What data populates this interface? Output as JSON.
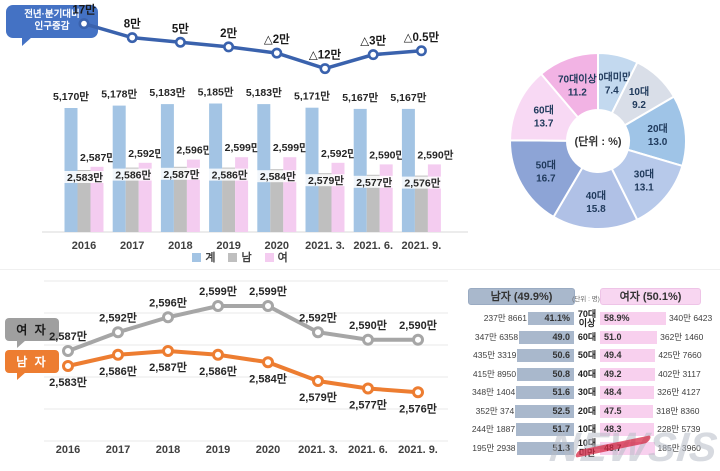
{
  "watermark": "NEWSIS",
  "callouts": {
    "top": [
      "전년·분기대비",
      "인구증감"
    ],
    "female": "여 자",
    "male": "남 자"
  },
  "legend": {
    "items": [
      {
        "label": "계",
        "color": "#a3c4e4"
      },
      {
        "label": "남",
        "color": "#bfbfbf"
      },
      {
        "label": "여",
        "color": "#f4ccf0"
      }
    ]
  },
  "chart_data": [
    {
      "id": "population-combo",
      "type": "bar",
      "title": "전년·분기대비 인구증감",
      "categories": [
        "2016",
        "2017",
        "2018",
        "2019",
        "2020",
        "2021. 3.",
        "2021. 6.",
        "2021. 9."
      ],
      "legend_position": "bottom",
      "series": [
        {
          "name": "계",
          "type": "bar",
          "color": "#a3c4e4",
          "values": [
            5170,
            5178,
            5183,
            5185,
            5183,
            5171,
            5167,
            5167
          ],
          "labels": [
            "5,170만",
            "5,178만",
            "5,183만",
            "5,185만",
            "5,183만",
            "5,171만",
            "5,167만",
            "5,167만"
          ]
        },
        {
          "name": "남",
          "type": "bar",
          "color": "#bfbfbf",
          "values": [
            2583,
            2586,
            2587,
            2586,
            2584,
            2579,
            2577,
            2576
          ],
          "labels": [
            "2,583만",
            "2,586만",
            "2,587만",
            "2,586만",
            "2,584만",
            "2,579만",
            "2,577만",
            "2,576만"
          ]
        },
        {
          "name": "여",
          "type": "bar",
          "color": "#f4ccf0",
          "values": [
            2587,
            2592,
            2596,
            2599,
            2599,
            2592,
            2590,
            2590
          ],
          "labels": [
            "2,587만",
            "2,592만",
            "2,596만",
            "2,599만",
            "2,599만",
            "2,592만",
            "2,590만",
            "2,590만"
          ]
        },
        {
          "name": "전년·분기대비 인구증감",
          "type": "line",
          "color": "#3a62ad",
          "values": [
            17,
            8,
            5,
            2,
            -2,
            -12,
            -3,
            -0.5
          ],
          "labels": [
            "17만",
            "8만",
            "5만",
            "2만",
            "△2만",
            "△12만",
            "△3만",
            "△0.5만"
          ]
        }
      ]
    },
    {
      "id": "age-distribution-donut",
      "type": "pie",
      "center_label": "(단위 : %)",
      "segments": [
        {
          "label": "10대미만",
          "value": 7.4,
          "value_label": "7.4",
          "color": "#c3d9ef"
        },
        {
          "label": "10대",
          "value": 9.2,
          "value_label": "9.2",
          "color": "#d9dee8"
        },
        {
          "label": "20대",
          "value": 13.0,
          "value_label": "13.0",
          "color": "#9fc4e7"
        },
        {
          "label": "30대",
          "value": 13.1,
          "value_label": "13.1",
          "color": "#b7c9ea"
        },
        {
          "label": "40대",
          "value": 15.8,
          "value_label": "15.8",
          "color": "#b0c1e6"
        },
        {
          "label": "50대",
          "value": 16.7,
          "value_label": "16.7",
          "color": "#8da4d6"
        },
        {
          "label": "60대",
          "value": 13.7,
          "value_label": "13.7",
          "color": "#f8d9f4"
        },
        {
          "label": "70대이상",
          "value": 11.2,
          "value_label": "11.2",
          "color": "#f2b3e4"
        }
      ]
    },
    {
      "id": "gender-trend-line",
      "type": "line",
      "categories": [
        "2016",
        "2017",
        "2018",
        "2019",
        "2020",
        "2021. 3.",
        "2021. 6.",
        "2021. 9."
      ],
      "grid": true,
      "series": [
        {
          "name": "여 자",
          "color": "#a6a6a6",
          "values": [
            2587,
            2592,
            2596,
            2599,
            2599,
            2592,
            2590,
            2590
          ],
          "labels": [
            "2,587만",
            "2,592만",
            "2,596만",
            "2,599만",
            "2,599만",
            "2,592만",
            "2,590만",
            "2,590만"
          ]
        },
        {
          "name": "남 자",
          "color": "#ed7d31",
          "values": [
            2583,
            2586,
            2587,
            2586,
            2584,
            2579,
            2577,
            2576
          ],
          "labels": [
            "2,583만",
            "2,586만",
            "2,587만",
            "2,586만",
            "2,584만",
            "2,579만",
            "2,577만",
            "2,576만"
          ]
        }
      ]
    },
    {
      "id": "gender-age-table",
      "type": "table",
      "male_header": "남자 (49.9%)",
      "female_header": "여자 (50.1%)",
      "unit": "(단위 : 명)",
      "rows": [
        {
          "age": "70대 이상",
          "male_count": "237만 8661",
          "male_pct": 41.1,
          "male_pct_label": "41.1%",
          "female_pct": 58.9,
          "female_pct_label": "58.9%",
          "female_count": "340만 6423"
        },
        {
          "age": "60대",
          "male_count": "347만 6358",
          "male_pct": 49.0,
          "male_pct_label": "49.0",
          "female_pct": 51.0,
          "female_pct_label": "51.0",
          "female_count": "362만 1460"
        },
        {
          "age": "50대",
          "male_count": "435만 3319",
          "male_pct": 50.6,
          "male_pct_label": "50.6",
          "female_pct": 49.4,
          "female_pct_label": "49.4",
          "female_count": "425만 7660"
        },
        {
          "age": "40대",
          "male_count": "415만 8950",
          "male_pct": 50.8,
          "male_pct_label": "50.8",
          "female_pct": 49.2,
          "female_pct_label": "49.2",
          "female_count": "402만 3117"
        },
        {
          "age": "30대",
          "male_count": "348만 1404",
          "male_pct": 51.6,
          "male_pct_label": "51.6",
          "female_pct": 48.4,
          "female_pct_label": "48.4",
          "female_count": "326만 4127"
        },
        {
          "age": "20대",
          "male_count": "352만 374",
          "male_pct": 52.5,
          "male_pct_label": "52.5",
          "female_pct": 47.5,
          "female_pct_label": "47.5",
          "female_count": "318만 8360"
        },
        {
          "age": "10대",
          "male_count": "244만 1887",
          "male_pct": 51.7,
          "male_pct_label": "51.7",
          "female_pct": 48.3,
          "female_pct_label": "48.3",
          "female_count": "228만 5739"
        },
        {
          "age": "10대 미만",
          "male_count": "195만 2938",
          "male_pct": 51.3,
          "male_pct_label": "51.3",
          "female_pct": 48.7,
          "female_pct_label": "48.7",
          "female_count": "185만 3960"
        }
      ]
    }
  ]
}
